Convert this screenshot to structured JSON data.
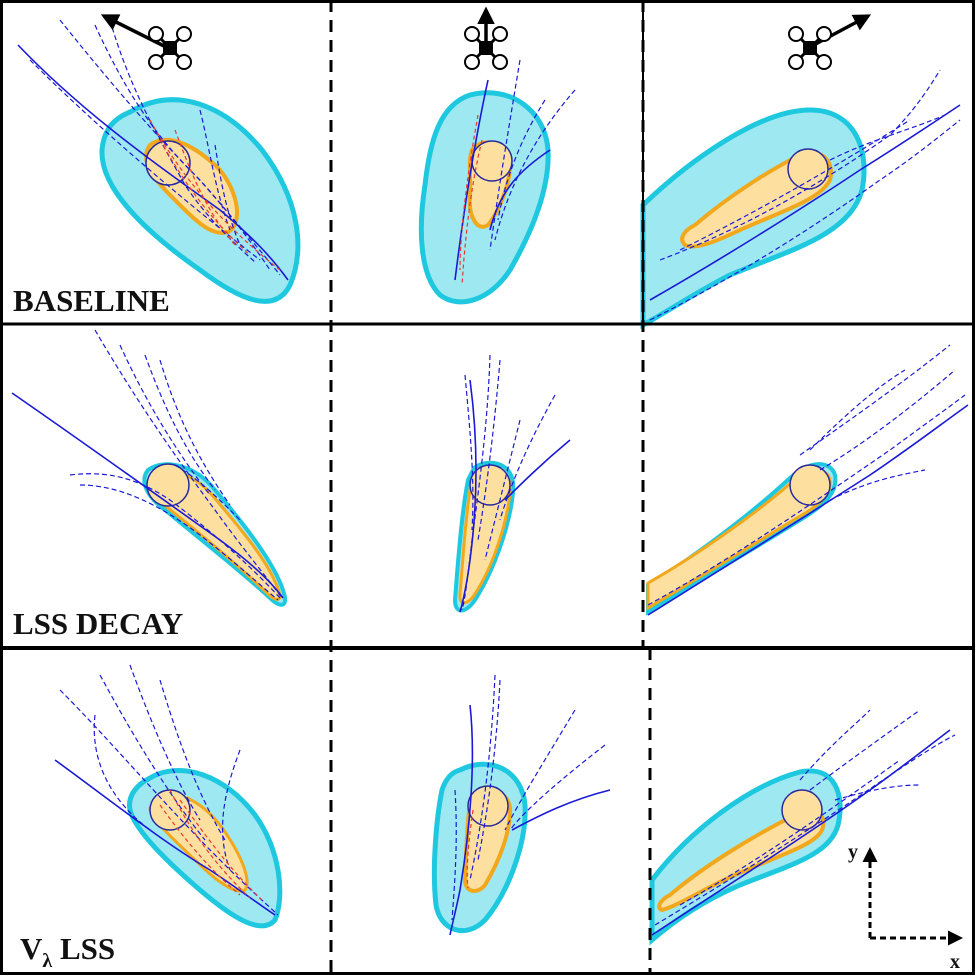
{
  "figure": {
    "rows": [
      {
        "id": "baseline",
        "label": "BASELINE"
      },
      {
        "id": "lss-decay",
        "label": "LSS DECAY"
      },
      {
        "id": "v-lambda-lss",
        "label_main": "V",
        "label_sub": "λ",
        "label_rest": " LSS"
      }
    ],
    "columns": [
      {
        "id": "left",
        "heading_direction": "up-left"
      },
      {
        "id": "center",
        "heading_direction": "up"
      },
      {
        "id": "right",
        "heading_direction": "up-right"
      }
    ],
    "axes": {
      "x_label": "x",
      "y_label": "y"
    },
    "colors": {
      "reachable_set_fill": "#9ee8f2",
      "reachable_set_edge": "#1ec8de",
      "obstacle_fill": "#fde0a0",
      "obstacle_edge": "#f2a81c",
      "trajectory_safe": "#1a1ad6",
      "trajectory_unsafe": "#e83a2a",
      "frame": "#000000"
    },
    "icons": {
      "drone": "quadrotor-icon",
      "heading": "arrow-icon"
    }
  }
}
